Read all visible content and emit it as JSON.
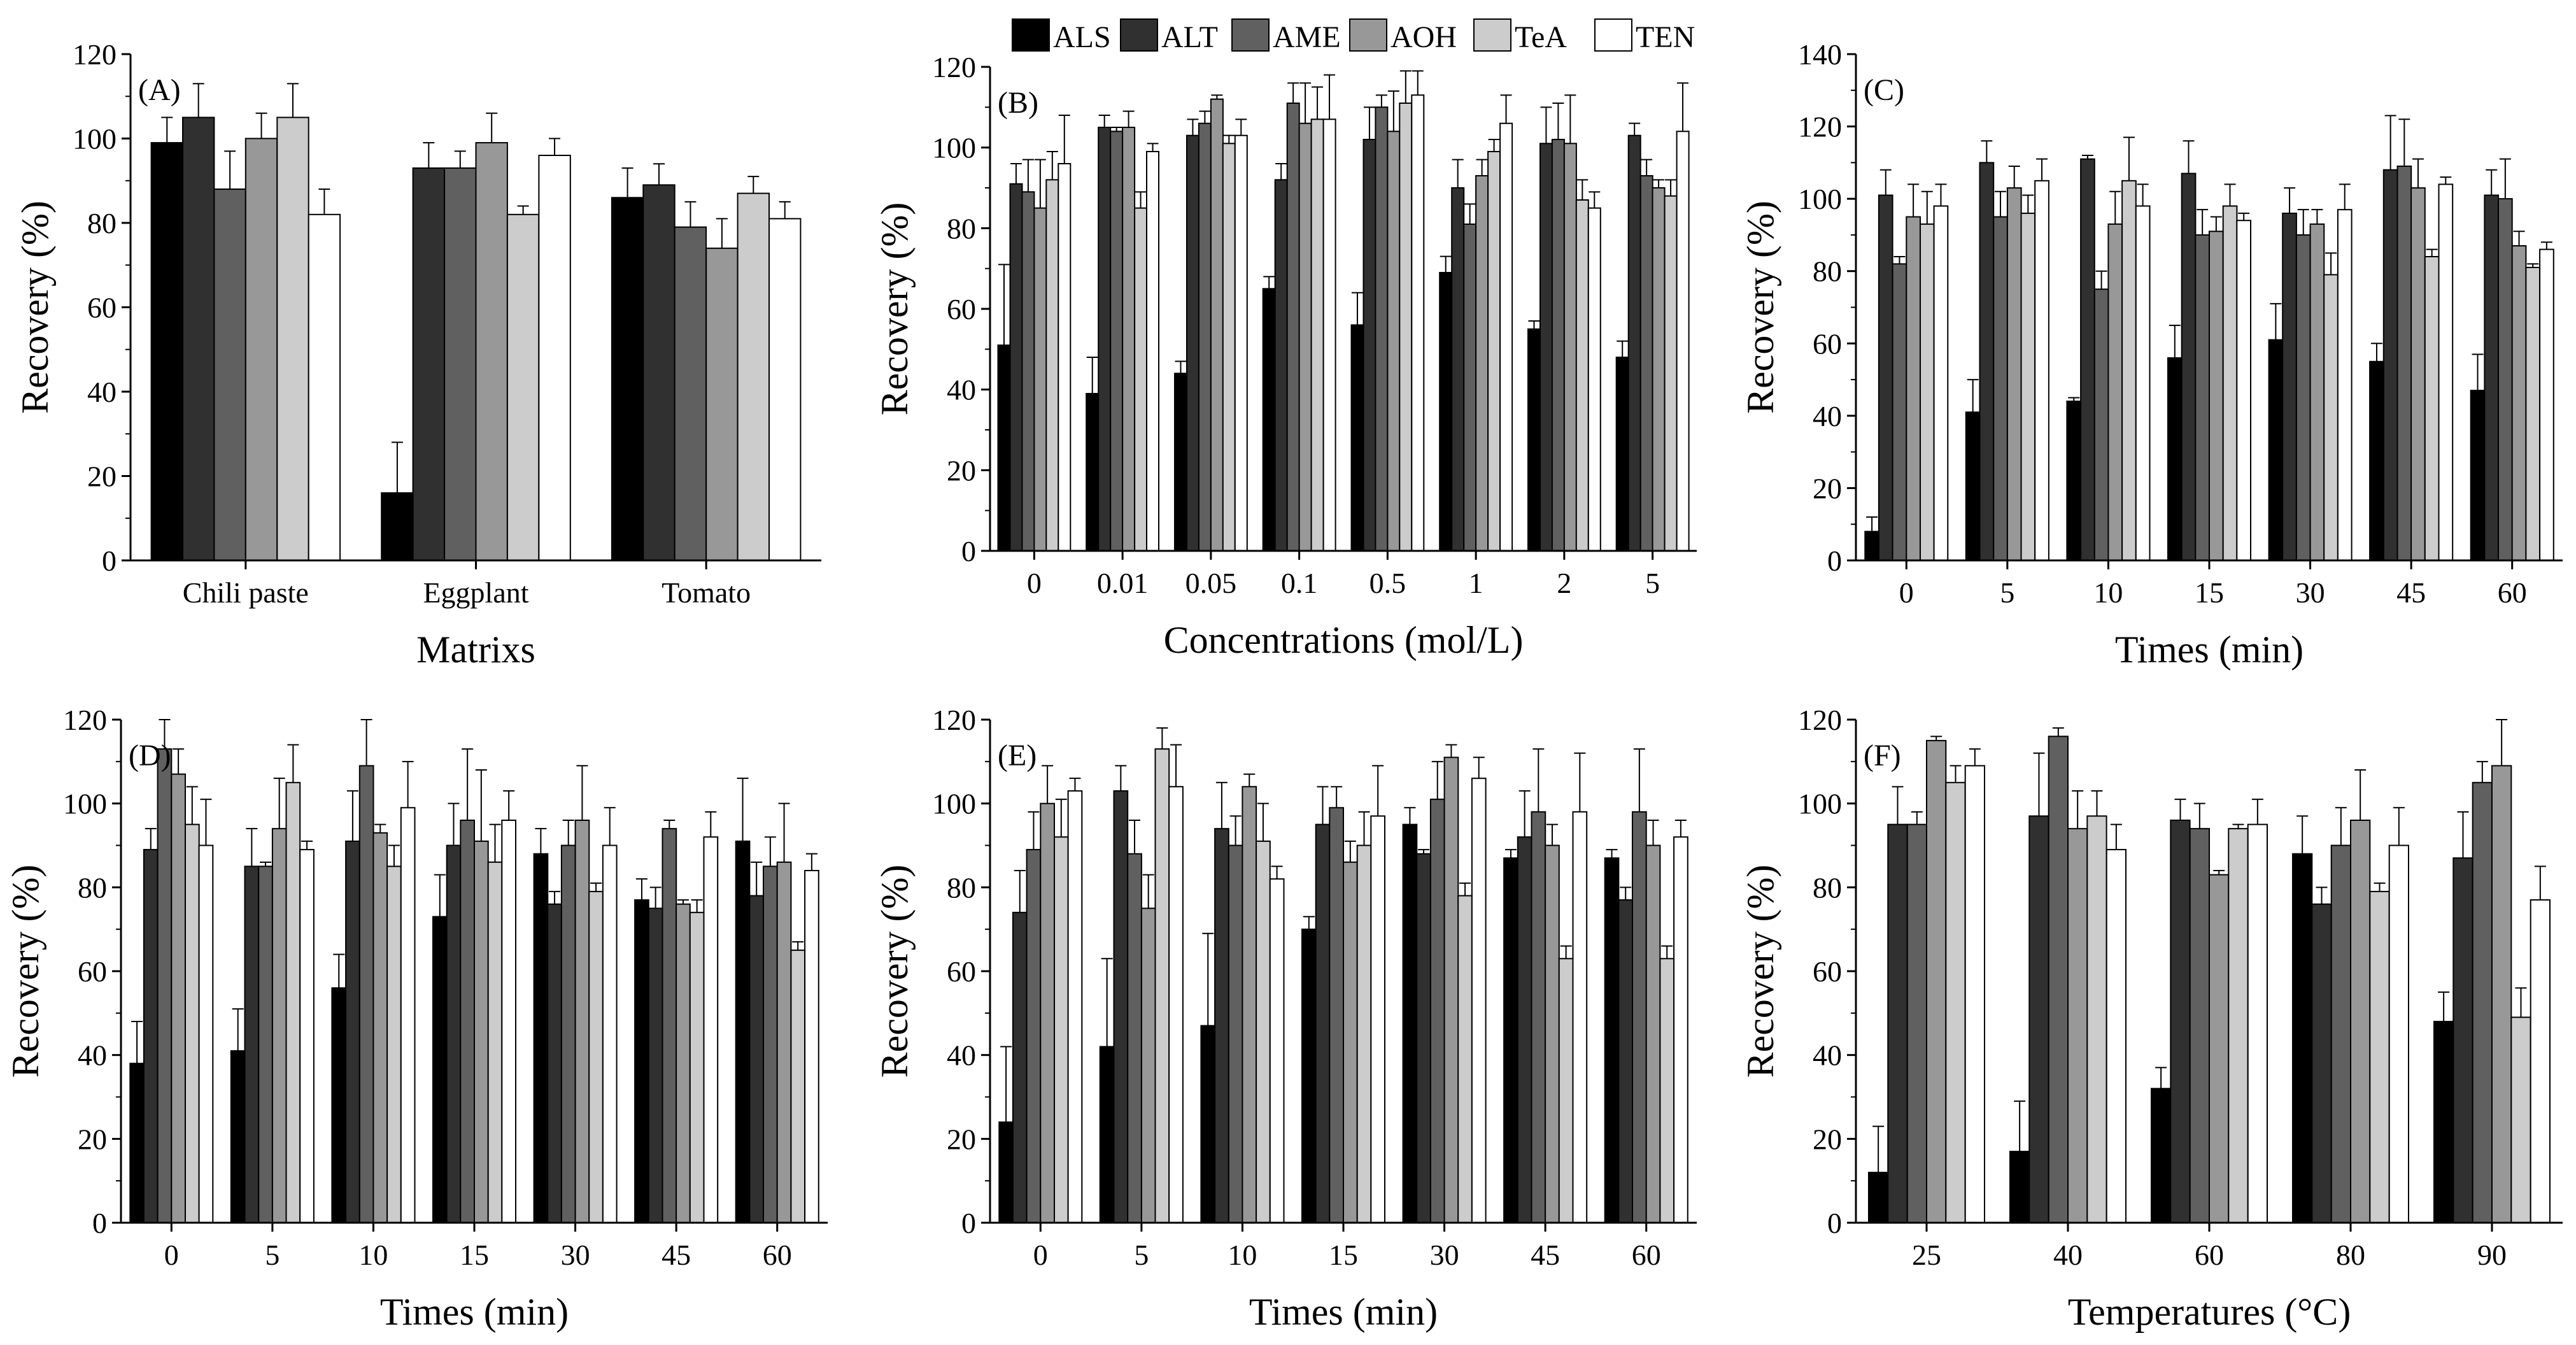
{
  "series_styles": [
    {
      "name": "ALS",
      "color": "#000000"
    },
    {
      "name": "ALT",
      "color": "#303030"
    },
    {
      "name": "AME",
      "color": "#606060"
    },
    {
      "name": "AOH",
      "color": "#989898"
    },
    {
      "name": "TeA",
      "color": "#cccccc"
    },
    {
      "name": "TEN",
      "color": "#ffffff"
    }
  ],
  "legend": {
    "items": [
      "ALS",
      "ALT",
      "AME",
      "AOH",
      "TeA",
      "TEN"
    ]
  },
  "chart_data": [
    {
      "type": "bar",
      "panel_label": "(A)",
      "title": "",
      "xlabel": "Matrixs",
      "ylabel": "Recovery (%)",
      "ylim": [
        0,
        120
      ],
      "yticks": [
        0,
        20,
        40,
        60,
        80,
        100,
        120
      ],
      "categories": [
        "Chili paste",
        "Eggplant",
        "Tomato"
      ],
      "series": [
        {
          "name": "ALS",
          "values": [
            99,
            16,
            86
          ],
          "errors": [
            6,
            12,
            7
          ]
        },
        {
          "name": "ALT",
          "values": [
            105,
            93,
            89
          ],
          "errors": [
            8,
            6,
            5
          ]
        },
        {
          "name": "AME",
          "values": [
            88,
            93,
            79
          ],
          "errors": [
            9,
            4,
            6
          ]
        },
        {
          "name": "AOH",
          "values": [
            100,
            99,
            74
          ],
          "errors": [
            6,
            7,
            7
          ]
        },
        {
          "name": "TeA",
          "values": [
            105,
            82,
            87
          ],
          "errors": [
            8,
            2,
            4
          ]
        },
        {
          "name": "TEN",
          "values": [
            82,
            96,
            81
          ],
          "errors": [
            6,
            4,
            4
          ]
        }
      ]
    },
    {
      "type": "bar",
      "panel_label": "(B)",
      "title": "",
      "xlabel": "Concentrations (mol/L)",
      "ylabel": "Recovery (%)",
      "ylim": [
        0,
        120
      ],
      "yticks": [
        0,
        20,
        40,
        60,
        80,
        100,
        120
      ],
      "categories": [
        "0",
        "0.01",
        "0.05",
        "0.1",
        "0.5",
        "1",
        "2",
        "5"
      ],
      "series": [
        {
          "name": "ALS",
          "values": [
            51,
            39,
            44,
            65,
            56,
            69,
            55,
            48
          ],
          "errors": [
            20,
            9,
            3,
            3,
            8,
            4,
            2,
            4
          ]
        },
        {
          "name": "ALT",
          "values": [
            91,
            105,
            103,
            92,
            102,
            90,
            101,
            103
          ],
          "errors": [
            5,
            3,
            4,
            4,
            8,
            7,
            9,
            3
          ]
        },
        {
          "name": "AME",
          "values": [
            89,
            104,
            106,
            111,
            110,
            81,
            102,
            93
          ],
          "errors": [
            8,
            1,
            3,
            5,
            3,
            5,
            9,
            4
          ]
        },
        {
          "name": "AOH",
          "values": [
            85,
            105,
            112,
            106,
            104,
            93,
            101,
            90
          ],
          "errors": [
            12,
            4,
            1,
            10,
            10,
            4,
            12,
            2
          ]
        },
        {
          "name": "TeA",
          "values": [
            92,
            85,
            101,
            107,
            111,
            99,
            87,
            88
          ],
          "errors": [
            7,
            4,
            2,
            8,
            8,
            3,
            5,
            4
          ]
        },
        {
          "name": "TEN",
          "values": [
            96,
            99,
            103,
            107,
            113,
            106,
            85,
            104
          ],
          "errors": [
            12,
            2,
            4,
            11,
            6,
            7,
            4,
            12
          ]
        }
      ]
    },
    {
      "type": "bar",
      "panel_label": "(C)",
      "title": "",
      "xlabel": "Times (min)",
      "ylabel": "Recovery (%)",
      "ylim": [
        0,
        140
      ],
      "yticks": [
        0,
        20,
        40,
        60,
        80,
        100,
        120,
        140
      ],
      "categories": [
        "0",
        "5",
        "10",
        "15",
        "30",
        "45",
        "60"
      ],
      "series": [
        {
          "name": "ALS",
          "values": [
            8,
            41,
            44,
            56,
            61,
            55,
            47
          ],
          "errors": [
            4,
            9,
            1,
            9,
            10,
            5,
            10
          ]
        },
        {
          "name": "ALT",
          "values": [
            101,
            110,
            111,
            107,
            96,
            108,
            101
          ],
          "errors": [
            7,
            6,
            1,
            9,
            7,
            15,
            7
          ]
        },
        {
          "name": "AME",
          "values": [
            82,
            95,
            75,
            90,
            90,
            109,
            100
          ],
          "errors": [
            2,
            7,
            5,
            7,
            7,
            13,
            11
          ]
        },
        {
          "name": "AOH",
          "values": [
            95,
            103,
            93,
            91,
            93,
            103,
            87
          ],
          "errors": [
            9,
            6,
            9,
            4,
            4,
            8,
            4
          ]
        },
        {
          "name": "TeA",
          "values": [
            93,
            96,
            105,
            98,
            79,
            84,
            81
          ],
          "errors": [
            9,
            5,
            12,
            6,
            6,
            2,
            1
          ]
        },
        {
          "name": "TEN",
          "values": [
            98,
            105,
            98,
            94,
            97,
            104,
            86
          ],
          "errors": [
            6,
            6,
            6,
            2,
            7,
            2,
            2
          ]
        }
      ]
    },
    {
      "type": "bar",
      "panel_label": "(D)",
      "title": "",
      "xlabel": "Times (min)",
      "ylabel": "Recovery (%)",
      "ylim": [
        0,
        120
      ],
      "yticks": [
        0,
        20,
        40,
        60,
        80,
        100,
        120
      ],
      "categories": [
        "0",
        "5",
        "10",
        "15",
        "30",
        "45",
        "60"
      ],
      "series": [
        {
          "name": "ALS",
          "values": [
            38,
            41,
            56,
            73,
            88,
            77,
            91
          ],
          "errors": [
            10,
            10,
            8,
            10,
            6,
            5,
            15
          ]
        },
        {
          "name": "ALT",
          "values": [
            89,
            85,
            91,
            90,
            76,
            75,
            78
          ],
          "errors": [
            5,
            9,
            12,
            10,
            3,
            5,
            8
          ]
        },
        {
          "name": "AME",
          "values": [
            113,
            85,
            109,
            96,
            90,
            94,
            85
          ],
          "errors": [
            7,
            1,
            11,
            17,
            6,
            2,
            7
          ]
        },
        {
          "name": "AOH",
          "values": [
            107,
            94,
            93,
            91,
            96,
            76,
            86
          ],
          "errors": [
            6,
            12,
            2,
            17,
            13,
            1,
            14
          ]
        },
        {
          "name": "TeA",
          "values": [
            95,
            105,
            85,
            86,
            79,
            74,
            65
          ],
          "errors": [
            9,
            9,
            5,
            9,
            2,
            3,
            2
          ]
        },
        {
          "name": "TEN",
          "values": [
            90,
            89,
            99,
            96,
            90,
            92,
            84
          ],
          "errors": [
            11,
            2,
            11,
            7,
            9,
            6,
            4
          ]
        }
      ]
    },
    {
      "type": "bar",
      "panel_label": "(E)",
      "title": "",
      "xlabel": "Times (min)",
      "ylabel": "Recovery (%)",
      "ylim": [
        0,
        120
      ],
      "yticks": [
        0,
        20,
        40,
        60,
        80,
        100,
        120
      ],
      "categories": [
        "0",
        "5",
        "10",
        "15",
        "30",
        "45",
        "60"
      ],
      "series": [
        {
          "name": "ALS",
          "values": [
            24,
            42,
            47,
            70,
            95,
            87,
            87
          ],
          "errors": [
            18,
            21,
            22,
            3,
            4,
            2,
            2
          ]
        },
        {
          "name": "ALT",
          "values": [
            74,
            103,
            94,
            95,
            88,
            92,
            77
          ],
          "errors": [
            10,
            6,
            11,
            9,
            1,
            11,
            3
          ]
        },
        {
          "name": "AME",
          "values": [
            89,
            88,
            90,
            99,
            101,
            98,
            98
          ],
          "errors": [
            9,
            8,
            7,
            5,
            9,
            15,
            15
          ]
        },
        {
          "name": "AOH",
          "values": [
            100,
            75,
            104,
            86,
            111,
            90,
            90
          ],
          "errors": [
            9,
            8,
            3,
            5,
            3,
            5,
            6
          ]
        },
        {
          "name": "TeA",
          "values": [
            92,
            113,
            91,
            90,
            78,
            63,
            63
          ],
          "errors": [
            9,
            5,
            9,
            8,
            3,
            3,
            3
          ]
        },
        {
          "name": "TEN",
          "values": [
            103,
            104,
            82,
            97,
            106,
            98,
            92
          ],
          "errors": [
            3,
            10,
            3,
            12,
            5,
            14,
            4
          ]
        }
      ]
    },
    {
      "type": "bar",
      "panel_label": "(F)",
      "title": "",
      "xlabel": "Temperatures (°C)",
      "ylabel": "Recovery (%)",
      "ylim": [
        0,
        120
      ],
      "yticks": [
        0,
        20,
        40,
        60,
        80,
        100,
        120
      ],
      "categories": [
        "25",
        "40",
        "60",
        "80",
        "90"
      ],
      "series": [
        {
          "name": "ALS",
          "values": [
            12,
            17,
            32,
            88,
            48
          ],
          "errors": [
            11,
            12,
            5,
            9,
            7
          ]
        },
        {
          "name": "ALT",
          "values": [
            95,
            97,
            96,
            76,
            87
          ],
          "errors": [
            9,
            15,
            5,
            4,
            11
          ]
        },
        {
          "name": "AME",
          "values": [
            95,
            116,
            94,
            90,
            105
          ],
          "errors": [
            3,
            2,
            6,
            9,
            5
          ]
        },
        {
          "name": "AOH",
          "values": [
            115,
            94,
            83,
            96,
            109
          ],
          "errors": [
            1,
            9,
            1,
            12,
            11
          ]
        },
        {
          "name": "TeA",
          "values": [
            105,
            97,
            94,
            79,
            49
          ],
          "errors": [
            4,
            6,
            1,
            2,
            7
          ]
        },
        {
          "name": "TEN",
          "values": [
            109,
            89,
            95,
            90,
            77
          ],
          "errors": [
            4,
            6,
            6,
            9,
            8
          ]
        }
      ]
    }
  ]
}
